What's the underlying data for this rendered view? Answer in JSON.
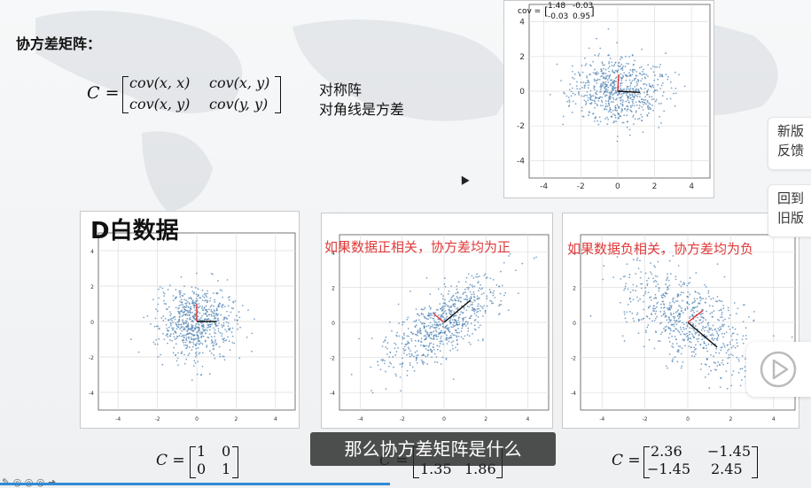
{
  "slide": {
    "heading": "协方差矩阵：",
    "formula": {
      "lhs": "C =",
      "m11": "cov(x, x)",
      "m12": "cov(x, y)",
      "m21": "cov(x, y)",
      "m22": "cov(y, y)"
    },
    "notes": [
      "对称阵",
      "对角线是方差"
    ],
    "top_plot_cov_label": "cov =",
    "top_plot_cov_values": [
      "1.48",
      "-0.03",
      "-0.03",
      "0.95"
    ],
    "panel_titles": {
      "white": "D白数据",
      "positive": "如果数据正相关，协方差均为正",
      "negative": "如果数据负相关，协方差均为负"
    },
    "matrices": [
      {
        "lhs": "C =",
        "a": "1",
        "b": "0",
        "c": "0",
        "d": "1"
      },
      {
        "lhs": "C =",
        "a": "",
        "b": "",
        "c": "1.35",
        "d": "1.86"
      },
      {
        "lhs": "C =",
        "a": "2.36",
        "b": "−1.45",
        "c": "−1.45",
        "d": "2.45"
      }
    ]
  },
  "chart_data": [
    {
      "type": "scatter",
      "title": "",
      "x_ticks": [
        "-4",
        "-2",
        "0",
        "2",
        "4"
      ],
      "y_ticks": [
        "4",
        "2",
        "0",
        "-2",
        "-4"
      ],
      "xlim": [
        -4.8,
        5
      ],
      "ylim": [
        -5,
        5
      ],
      "cov": [
        [
          1.48,
          -0.03
        ],
        [
          -0.03,
          0.95
        ]
      ],
      "grid": true
    },
    {
      "type": "scatter",
      "title": "D白数据",
      "x_ticks": [
        "-4",
        "-2",
        "0",
        "2",
        "4"
      ],
      "y_ticks": [
        "4",
        "2",
        "0",
        "-2",
        "-4"
      ],
      "xlim": [
        -5,
        5
      ],
      "ylim": [
        -5,
        5
      ],
      "cov": [
        [
          1,
          0
        ],
        [
          0,
          1
        ]
      ],
      "grid": true
    },
    {
      "type": "scatter",
      "title": "如果数据正相关，协方差均为正",
      "x_ticks": [
        "-4",
        "-2",
        "0",
        "2",
        "4"
      ],
      "y_ticks": [
        "4",
        "2",
        "0",
        "-2",
        "-4"
      ],
      "xlim": [
        -5,
        5
      ],
      "ylim": [
        -5,
        5
      ],
      "cov": [
        [
          1.86,
          1.35
        ],
        [
          1.35,
          1.86
        ]
      ],
      "grid": true
    },
    {
      "type": "scatter",
      "title": "如果数据负相关，协方差均为负",
      "x_ticks": [
        "-4",
        "-2",
        "0",
        "2",
        "4"
      ],
      "y_ticks": [
        "4",
        "2",
        "0",
        "-2",
        "-4"
      ],
      "xlim": [
        -5,
        5
      ],
      "ylim": [
        -5,
        5
      ],
      "cov": [
        [
          2.36,
          -1.45
        ],
        [
          -1.45,
          2.45
        ]
      ],
      "grid": true
    }
  ],
  "player": {
    "subtitle": "那么协方差矩阵是什么",
    "side_buttons": [
      {
        "label1": "新版",
        "label2": "反馈"
      },
      {
        "label1": "回到",
        "label2": "旧版"
      }
    ],
    "bottom_icons": "✎ ◎ ◎ ◎ ➜",
    "accent_color": "#2f8bd6",
    "red_color": "#e03a3a"
  }
}
